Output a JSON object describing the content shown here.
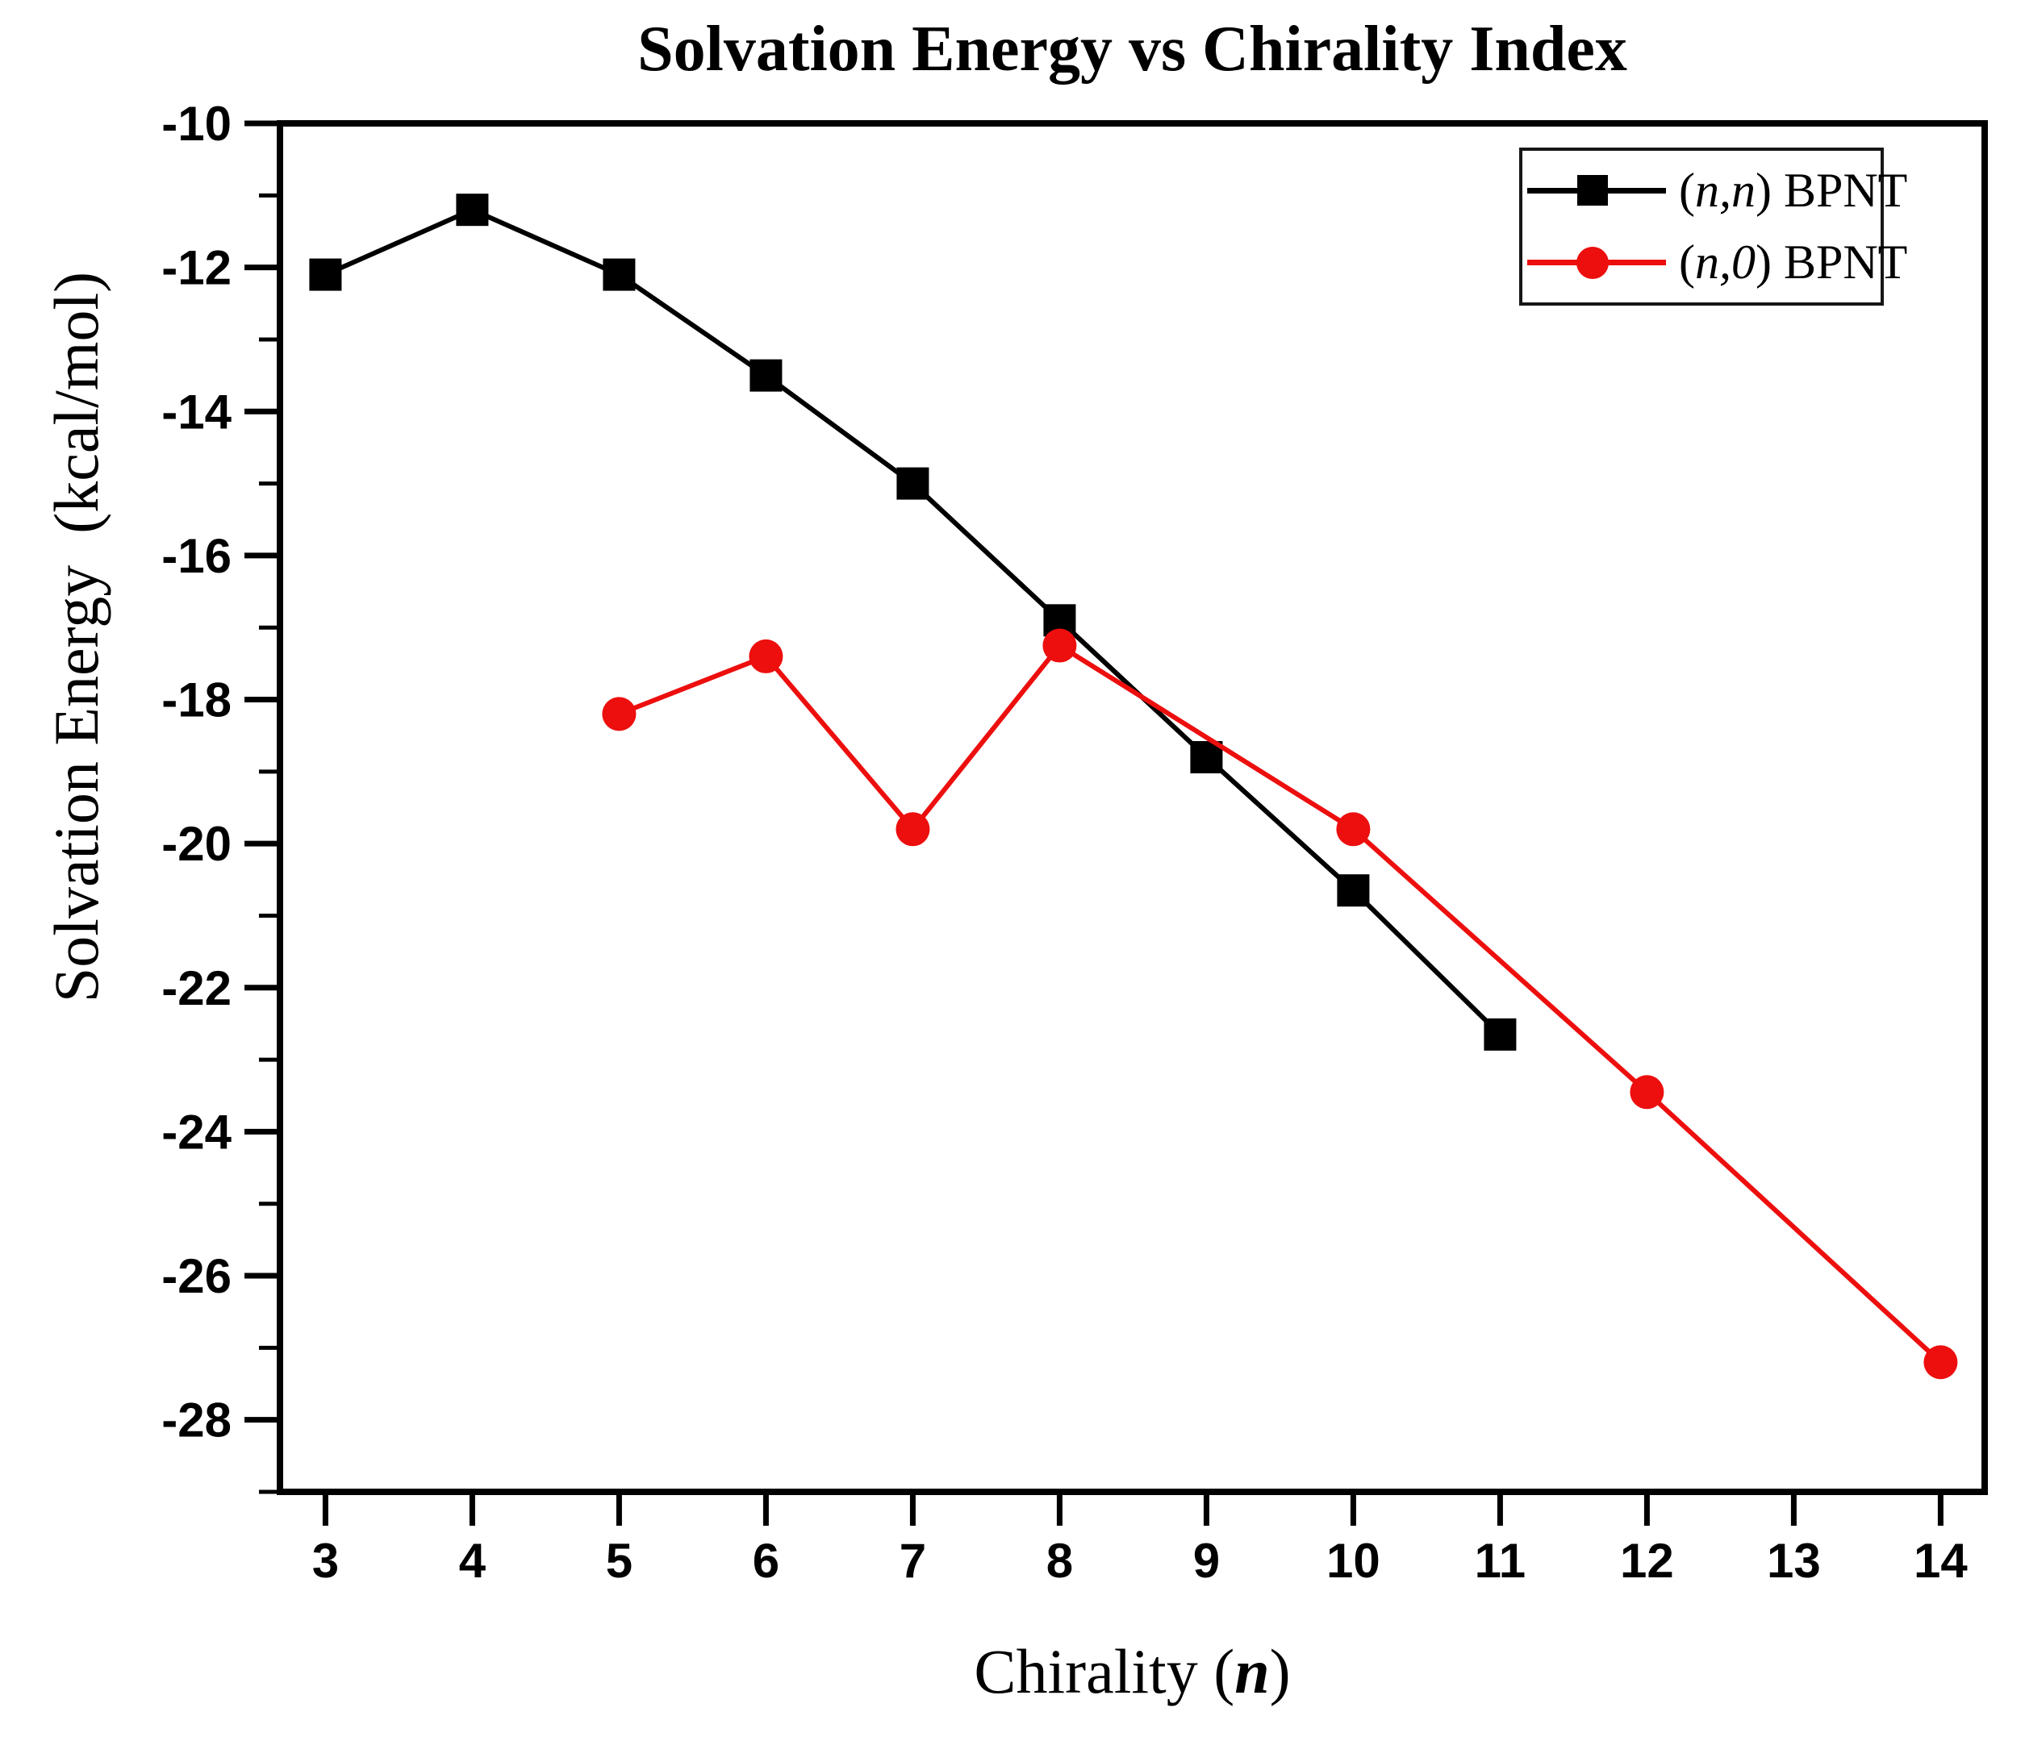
{
  "figure": {
    "title": "Solvation Energy vs Chirality Index"
  },
  "chart_data": {
    "type": "line",
    "title": "Solvation Energy vs Chirality Index",
    "xlabel": "Chirality (n)",
    "ylabel": "Solvation Energy (kcal/mol)",
    "xlim": [
      2.69,
      14.3
    ],
    "ylim": [
      -29,
      -10
    ],
    "x_ticks": [
      3,
      4,
      5,
      6,
      7,
      8,
      9,
      10,
      11,
      12,
      13,
      14
    ],
    "y_major_ticks": [
      -10,
      -12,
      -14,
      -16,
      -18,
      -20,
      -22,
      -24,
      -26,
      -28
    ],
    "y_minor_ticks": [
      -11,
      -13,
      -15,
      -17,
      -19,
      -21,
      -23,
      -25,
      -27,
      -29
    ],
    "grid": false,
    "legend_position": "top-right-inside",
    "axis_color": "#000000",
    "series": [
      {
        "name": "(n,n) BPNT",
        "color": "#000000",
        "marker": "square",
        "x": [
          3,
          4,
          5,
          6,
          7,
          8,
          9,
          10,
          11
        ],
        "y": [
          -12.1,
          -11.2,
          -12.1,
          -13.5,
          -15.0,
          -16.9,
          -18.8,
          -20.65,
          -22.65
        ]
      },
      {
        "name": "(n,0) BPNT",
        "color": "#ed0e0e",
        "marker": "circle",
        "x": [
          5,
          6,
          7,
          8,
          10,
          12,
          14
        ],
        "y": [
          -18.2,
          -17.4,
          -19.8,
          -17.25,
          -19.8,
          -23.45,
          -27.2
        ]
      }
    ]
  },
  "labels": {
    "xlabel_pre": "Chirality (",
    "xlabel_italic": "n",
    "xlabel_post": ")",
    "ylabel": "Solvation Energy  (kcal/mol)"
  },
  "legend": {
    "entries": [
      {
        "pre": "(",
        "italic": "n,n",
        "post": ") BPNT"
      },
      {
        "pre": "(",
        "italic": "n,0",
        "post": ") BPNT"
      }
    ]
  }
}
